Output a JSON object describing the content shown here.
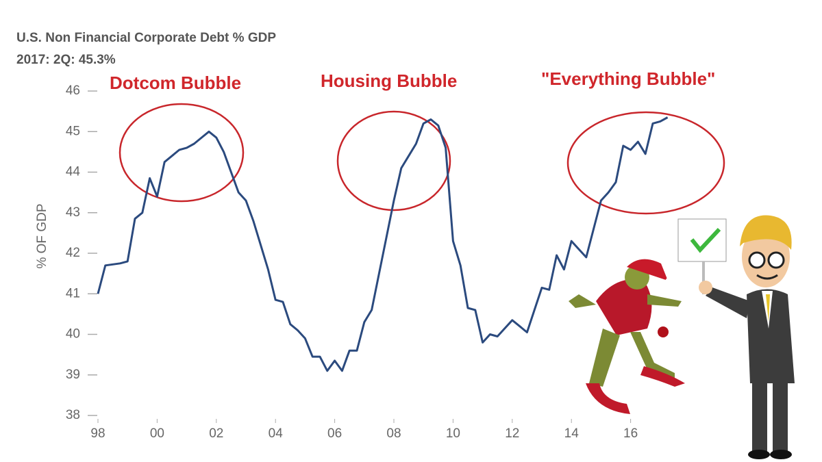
{
  "chart_data": {
    "type": "line",
    "title": "U.S. Non Financial Corporate Debt % GDP",
    "subtitle": "2017: 2Q: 45.3%",
    "y_label": "% OF GDP",
    "annotations": [
      "Dotcom Bubble",
      "Housing Bubble",
      "\"Everything Bubble\""
    ],
    "color": "#2b4a7e",
    "x": [
      1998.0,
      1998.25,
      1998.75,
      1999.0,
      1999.25,
      1999.5,
      1999.75,
      2000.0,
      2000.25,
      2000.5,
      2000.75,
      2001.0,
      2001.25,
      2001.5,
      2001.75,
      2002.0,
      2002.25,
      2002.5,
      2002.75,
      2003.0,
      2003.25,
      2003.5,
      2003.75,
      2004.0,
      2004.25,
      2004.5,
      2004.75,
      2005.0,
      2005.25,
      2005.5,
      2005.75,
      2006.0,
      2006.25,
      2006.5,
      2006.75,
      2007.0,
      2007.25,
      2007.5,
      2007.75,
      2008.0,
      2008.25,
      2008.5,
      2008.75,
      2009.0,
      2009.25,
      2009.5,
      2009.75,
      2010.0,
      2010.25,
      2010.5,
      2010.75,
      2011.0,
      2011.25,
      2011.5,
      2011.75,
      2012.0,
      2012.25,
      2012.5,
      2012.75,
      2013.0,
      2013.25,
      2013.5,
      2013.75,
      2014.0,
      2014.25,
      2014.5,
      2014.75,
      2015.0,
      2015.25,
      2015.5,
      2015.75,
      2016.0,
      2016.25,
      2016.5,
      2016.75,
      2017.0,
      2017.25
    ],
    "values": [
      41.0,
      41.7,
      41.75,
      41.8,
      42.85,
      43.0,
      43.85,
      43.4,
      44.25,
      44.4,
      44.55,
      44.6,
      44.7,
      44.85,
      45.0,
      44.85,
      44.5,
      44.0,
      43.5,
      43.3,
      42.8,
      42.2,
      41.6,
      40.85,
      40.8,
      40.25,
      40.1,
      39.9,
      39.45,
      39.45,
      39.1,
      39.35,
      39.1,
      39.6,
      39.6,
      40.3,
      40.6,
      41.5,
      42.4,
      43.3,
      44.1,
      44.4,
      44.7,
      45.2,
      45.3,
      45.15,
      44.6,
      42.3,
      41.7,
      40.65,
      40.6,
      39.8,
      40.0,
      39.95,
      40.15,
      40.35,
      40.2,
      40.05,
      40.6,
      41.15,
      41.1,
      41.95,
      41.6,
      42.3,
      42.1,
      41.9,
      42.6,
      43.3,
      43.5,
      43.75,
      44.65,
      44.55,
      44.75,
      44.45,
      45.2,
      45.25,
      45.35
    ],
    "xlim": [
      1997.9,
      2018.5
    ],
    "ylim": [
      38,
      46
    ],
    "xticks": [
      {
        "value": 1998,
        "label": "98"
      },
      {
        "value": 2000,
        "label": "00"
      },
      {
        "value": 2002,
        "label": "02"
      },
      {
        "value": 2004,
        "label": "04"
      },
      {
        "value": 2006,
        "label": "06"
      },
      {
        "value": 2008,
        "label": "08"
      },
      {
        "value": 2010,
        "label": "10"
      },
      {
        "value": 2012,
        "label": "12"
      },
      {
        "value": 2014,
        "label": "14"
      },
      {
        "value": 2016,
        "label": "16"
      }
    ],
    "yticks": [
      38,
      39,
      40,
      41,
      42,
      43,
      44,
      45,
      46
    ]
  }
}
